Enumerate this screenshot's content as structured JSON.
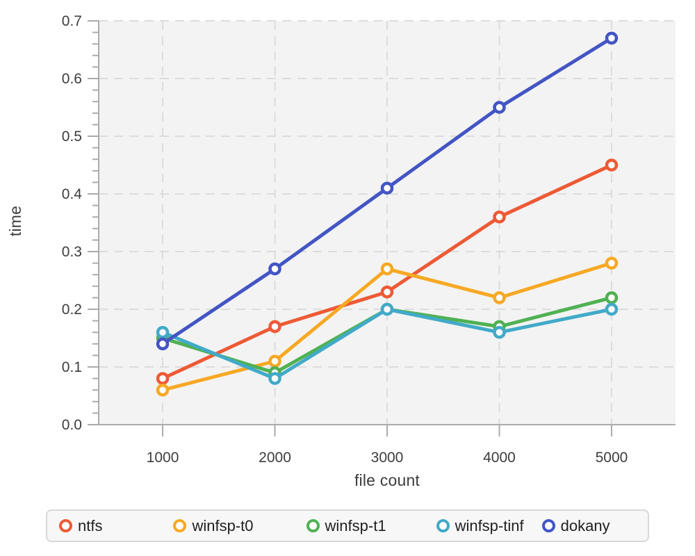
{
  "chart_data": {
    "type": "line",
    "title": "",
    "xlabel": "file count",
    "ylabel": "time",
    "x": [
      1000,
      2000,
      3000,
      4000,
      5000
    ],
    "xtick_labels": [
      "1000",
      "2000",
      "3000",
      "4000",
      "5000"
    ],
    "ytick_labels": [
      "0.0",
      "0.1",
      "0.2",
      "0.3",
      "0.4",
      "0.5",
      "0.6",
      "0.7"
    ],
    "yticks_major": [
      0.0,
      0.1,
      0.2,
      0.3,
      0.4,
      0.5,
      0.6,
      0.7
    ],
    "ytick_minor_step": 0.02,
    "xlim": [
      430,
      5570
    ],
    "ylim": [
      0,
      0.7
    ],
    "grid": "dashed, both axes",
    "legend_position": "bottom",
    "series": [
      {
        "name": "ntfs",
        "color": "#ED5A35",
        "values": [
          0.08,
          0.17,
          0.23,
          0.36,
          0.45
        ]
      },
      {
        "name": "winfsp-t0",
        "color": "#F7A823",
        "values": [
          0.06,
          0.11,
          0.27,
          0.22,
          0.28
        ]
      },
      {
        "name": "winfsp-t1",
        "color": "#50B153",
        "values": [
          0.15,
          0.09,
          0.2,
          0.17,
          0.22
        ]
      },
      {
        "name": "winfsp-tinf",
        "color": "#41AAC8",
        "values": [
          0.16,
          0.08,
          0.2,
          0.16,
          0.2
        ]
      },
      {
        "name": "dokany",
        "color": "#4355C4",
        "values": [
          0.14,
          0.27,
          0.41,
          0.55,
          0.67
        ]
      }
    ],
    "style": {
      "plot_bg": "#f3f3f3",
      "grid_color": "#dcdcdc",
      "axis_color": "#ababab",
      "tick_label_color": "#3d3d3d",
      "line_width": 5,
      "marker": "open-circle"
    }
  }
}
